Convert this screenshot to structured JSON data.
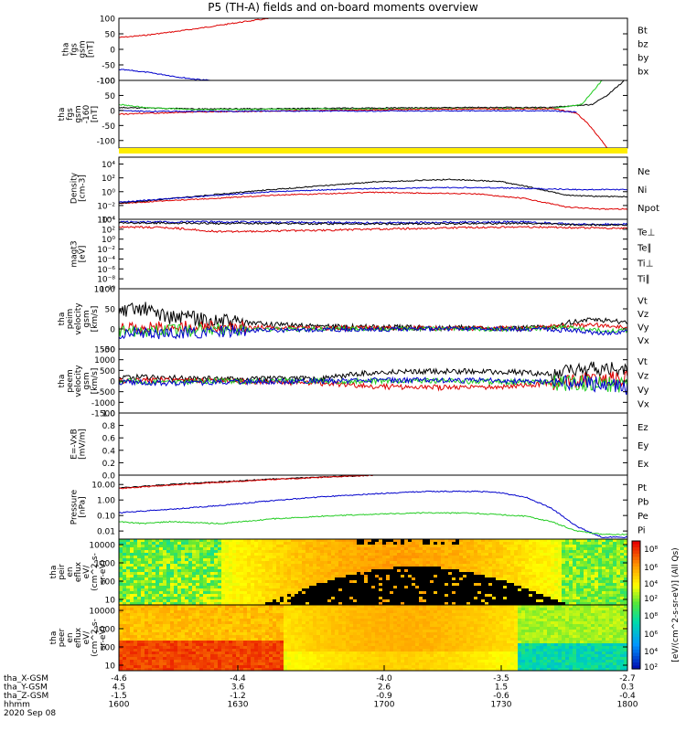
{
  "title": "P5 (TH-A) fields and on-board moments overview",
  "date_label": "2020 Sep 08",
  "colors": {
    "black": "#000000",
    "red": "#dd0000",
    "green": "#22cc22",
    "blue": "#0000cc",
    "yellow": "#ffee00"
  },
  "chart_data": [
    {
      "type": "line",
      "id": "fgs",
      "ylabel": [
        "tha",
        "fgs",
        "gsm",
        "[nT]"
      ],
      "ylim": [
        -100,
        100
      ],
      "yticks": [
        "100",
        "50",
        "0",
        "-50",
        "-100"
      ],
      "ytick_values": [
        100,
        50,
        0,
        -50,
        -100
      ],
      "legend": [
        {
          "label": "Bt",
          "color": "#000000"
        },
        {
          "label": "bz",
          "color": "#dd0000"
        },
        {
          "label": "by",
          "color": "#22cc22"
        },
        {
          "label": "bx",
          "color": "#0000cc"
        }
      ],
      "series": [
        {
          "name": "bz",
          "color": "#dd0000",
          "x": [
            0,
            0.05,
            0.1,
            0.15,
            0.2,
            0.25,
            0.3
          ],
          "y": [
            38,
            45,
            55,
            66,
            78,
            90,
            100
          ]
        },
        {
          "name": "bx",
          "color": "#0000cc",
          "x": [
            0,
            0.03,
            0.06,
            0.09,
            0.12,
            0.15,
            0.18
          ],
          "y": [
            -65,
            -69,
            -75,
            -82,
            -90,
            -96,
            -100
          ]
        }
      ]
    },
    {
      "type": "line",
      "id": "fgs2",
      "ylabel": [
        "tha",
        "fgs",
        "gsm",
        "-160",
        "[nT]"
      ],
      "ylim": [
        -125,
        100
      ],
      "yticks": [
        "100",
        "50",
        "0",
        "-50",
        "-100"
      ],
      "ytick_values": [
        100,
        50,
        0,
        -50,
        -100
      ],
      "legend": [],
      "series": [
        {
          "name": "black",
          "color": "#000000",
          "x": [
            0,
            0.05,
            0.15,
            0.3,
            0.5,
            0.7,
            0.85,
            0.93,
            0.96,
            0.98,
            0.995
          ],
          "y": [
            10,
            8,
            5,
            6,
            8,
            10,
            10,
            20,
            50,
            80,
            100
          ]
        },
        {
          "name": "green",
          "color": "#22cc22",
          "x": [
            0,
            0.05,
            0.15,
            0.3,
            0.5,
            0.7,
            0.85,
            0.91,
            0.93,
            0.95
          ],
          "y": [
            20,
            10,
            3,
            4,
            5,
            6,
            6,
            20,
            60,
            100
          ]
        },
        {
          "name": "red",
          "color": "#dd0000",
          "x": [
            0,
            0.05,
            0.15,
            0.3,
            0.5,
            0.7,
            0.86,
            0.9,
            0.92,
            0.94,
            0.96
          ],
          "y": [
            -12,
            -10,
            -5,
            -2,
            2,
            5,
            5,
            -10,
            -40,
            -80,
            -125
          ]
        },
        {
          "name": "blue",
          "color": "#0000cc",
          "x": [
            0,
            0.05,
            0.15,
            0.3,
            0.5,
            0.7,
            0.85,
            0.9
          ],
          "y": [
            0,
            -3,
            -3,
            -2,
            -2,
            -1,
            -1,
            -5
          ]
        }
      ]
    },
    {
      "type": "line",
      "id": "density",
      "yscale": "log",
      "ylabel": [
        "Density",
        "[cm-3]"
      ],
      "ylim": [
        0.0001,
        100000
      ],
      "yticks": [
        "10⁴",
        "10²",
        "10⁰",
        "10⁻²",
        "10⁻⁴"
      ],
      "ytick_values": [
        10000,
        100,
        1,
        0.01,
        0.0001
      ],
      "legend": [
        {
          "label": "Ne",
          "color": "#dd0000"
        },
        {
          "label": "Ni",
          "color": "#000000"
        },
        {
          "label": "Npot",
          "color": "#0000cc"
        }
      ],
      "series": [
        {
          "name": "Ne",
          "color": "#dd0000",
          "x": [
            0,
            0.1,
            0.3,
            0.5,
            0.7,
            0.8,
            0.88,
            0.95,
            1
          ],
          "y": [
            0.02,
            0.05,
            0.3,
            0.8,
            0.5,
            0.1,
            0.006,
            0.003,
            0.003
          ]
        },
        {
          "name": "Ni",
          "color": "#000000",
          "x": [
            0,
            0.1,
            0.3,
            0.5,
            0.65,
            0.75,
            0.82,
            0.88,
            0.95,
            1
          ],
          "y": [
            0.02,
            0.1,
            2,
            25,
            60,
            30,
            3,
            0.3,
            0.2,
            0.2
          ]
        },
        {
          "name": "Npot",
          "color": "#0000cc",
          "x": [
            0,
            0.1,
            0.3,
            0.5,
            0.7,
            0.8,
            0.9,
            1
          ],
          "y": [
            0.03,
            0.1,
            1,
            3,
            4,
            3,
            2,
            2
          ]
        }
      ]
    },
    {
      "type": "line",
      "id": "temperature",
      "yscale": "log",
      "ylabel": [
        "magt3",
        "[eV]"
      ],
      "ylim": [
        1e-10,
        10000
      ],
      "yticks": [
        "10⁴",
        "10²",
        "10⁰",
        "10⁻²",
        "10⁻⁴",
        "10⁻⁶",
        "10⁻⁸",
        "10⁻¹⁰"
      ],
      "ytick_values": [
        10000,
        100,
        1,
        0.01,
        0.0001,
        1e-06,
        1e-08,
        1e-10
      ],
      "legend": [
        {
          "label": "Te⊥",
          "color": "#dd0000"
        },
        {
          "label": "Te∥",
          "color": "#000000"
        },
        {
          "label": "Ti⊥",
          "color": "#880088"
        },
        {
          "label": "Ti∥",
          "color": "#22cc22"
        }
      ],
      "series": [
        {
          "name": "Ti",
          "color": "#0000cc",
          "x": [
            0,
            0.2,
            0.5,
            0.8,
            0.9,
            1
          ],
          "y": [
            3000,
            3000,
            2000,
            3000,
            1000,
            1000
          ]
        },
        {
          "name": "Te",
          "color": "#dd0000",
          "x": [
            0,
            0.1,
            0.2,
            0.35,
            0.5,
            0.65,
            0.8,
            0.9,
            1
          ],
          "y": [
            300,
            200,
            30,
            50,
            100,
            200,
            300,
            200,
            150
          ]
        },
        {
          "name": "Te∥",
          "color": "#000000",
          "x": [
            0,
            0.2,
            0.5,
            0.8,
            0.9,
            1
          ],
          "y": [
            2000,
            1500,
            1200,
            1500,
            800,
            800
          ]
        }
      ]
    },
    {
      "type": "line",
      "id": "peim",
      "ylabel": [
        "tha",
        "peim",
        "velocity",
        "gsm",
        "[km/s]"
      ],
      "ylim": [
        -50,
        100
      ],
      "yticks": [
        "100",
        "50",
        "0",
        "-50"
      ],
      "ytick_values": [
        100,
        50,
        0,
        -50
      ],
      "legend": [
        {
          "label": "Vt",
          "color": "#000000"
        },
        {
          "label": "Vz",
          "color": "#dd0000"
        },
        {
          "label": "Vy",
          "color": "#22cc22"
        },
        {
          "label": "Vx",
          "color": "#0000cc"
        }
      ],
      "series": [
        {
          "name": "Vt",
          "color": "#000000",
          "x": [
            0,
            0.05,
            0.1,
            0.15,
            0.2,
            0.3,
            0.45,
            0.6,
            0.8,
            0.85,
            0.88,
            0.9,
            0.95,
            1
          ],
          "y": [
            40,
            50,
            30,
            25,
            20,
            10,
            5,
            3,
            2,
            5,
            15,
            20,
            22,
            18
          ]
        },
        {
          "name": "Vz",
          "color": "#dd0000",
          "x": [
            0,
            0.1,
            0.2,
            0.4,
            0.6,
            0.8,
            0.88,
            0.95,
            1
          ],
          "y": [
            0,
            5,
            5,
            2,
            2,
            1,
            8,
            10,
            5
          ]
        },
        {
          "name": "Vy",
          "color": "#22cc22",
          "x": [
            0,
            0.1,
            0.2,
            0.4,
            0.6,
            0.8,
            0.88,
            0.95,
            1
          ],
          "y": [
            -5,
            -5,
            -2,
            0,
            0,
            0,
            5,
            -5,
            -3
          ]
        },
        {
          "name": "Vx",
          "color": "#0000cc",
          "x": [
            0,
            0.1,
            0.2,
            0.4,
            0.6,
            0.8,
            0.88,
            0.95,
            1
          ],
          "y": [
            -10,
            -10,
            -5,
            -2,
            0,
            0,
            -3,
            -10,
            -5
          ]
        }
      ]
    },
    {
      "type": "line",
      "id": "peem",
      "ylabel": [
        "tha",
        "peem",
        "velocity",
        "gsm",
        "[km/s]"
      ],
      "ylim": [
        -1500,
        1500
      ],
      "yticks": [
        "1500",
        "1000",
        "500",
        "0",
        "-500",
        "-1000",
        "-1500"
      ],
      "ytick_values": [
        1500,
        1000,
        500,
        0,
        -500,
        -1000,
        -1500
      ],
      "legend": [
        {
          "label": "Vt",
          "color": "#000000"
        },
        {
          "label": "Vz",
          "color": "#dd0000"
        },
        {
          "label": "Vy",
          "color": "#22cc22"
        },
        {
          "label": "Vx",
          "color": "#0000cc"
        }
      ],
      "series": [
        {
          "name": "Vt",
          "color": "#000000",
          "x": [
            0,
            0.1,
            0.2,
            0.4,
            0.45,
            0.5,
            0.6,
            0.7,
            0.8,
            0.85,
            0.9,
            1
          ],
          "y": [
            200,
            150,
            100,
            100,
            300,
            400,
            450,
            450,
            400,
            300,
            500,
            600
          ]
        },
        {
          "name": "Vz",
          "color": "#dd0000",
          "x": [
            0,
            0.1,
            0.2,
            0.4,
            0.5,
            0.6,
            0.7,
            0.8,
            0.85,
            0.9,
            1
          ],
          "y": [
            0,
            50,
            0,
            -100,
            -250,
            -300,
            -300,
            -200,
            -100,
            0,
            100
          ]
        },
        {
          "name": "Vy",
          "color": "#22cc22",
          "x": [
            0,
            0.1,
            0.2,
            0.4,
            0.6,
            0.8,
            0.9,
            1
          ],
          "y": [
            0,
            -50,
            0,
            0,
            0,
            -50,
            -100,
            -200
          ]
        },
        {
          "name": "Vx",
          "color": "#0000cc",
          "x": [
            0,
            0.1,
            0.2,
            0.4,
            0.6,
            0.8,
            0.9,
            1
          ],
          "y": [
            -50,
            -100,
            -50,
            0,
            50,
            0,
            -100,
            -300
          ]
        }
      ]
    },
    {
      "type": "line",
      "id": "efield",
      "ylabel": [
        "E=-VxB",
        "[mV/m]"
      ],
      "ylim": [
        0,
        1
      ],
      "yticks": [
        "1.0",
        "0.8",
        "0.6",
        "0.4",
        "0.2",
        "0.0"
      ],
      "ytick_values": [
        1,
        0.8,
        0.6,
        0.4,
        0.2,
        0
      ],
      "legend": [
        {
          "label": "Ez",
          "color": "#dd0000"
        },
        {
          "label": "Ey",
          "color": "#22cc22"
        },
        {
          "label": "Ex",
          "color": "#0000cc"
        }
      ],
      "series": []
    },
    {
      "type": "line",
      "id": "pressure",
      "yscale": "log",
      "ylabel": [
        "Pressure",
        "[nPa]"
      ],
      "ylim": [
        0.003,
        40
      ],
      "yticks": [
        "10.00",
        "1.00",
        "0.10",
        "0.01"
      ],
      "ytick_values": [
        10,
        1,
        0.1,
        0.01
      ],
      "legend": [
        {
          "label": "Pt",
          "color": "#000000"
        },
        {
          "label": "Pb",
          "color": "#dd0000"
        },
        {
          "label": "Pe",
          "color": "#22cc22"
        },
        {
          "label": "Pi",
          "color": "#0000cc"
        }
      ],
      "series": [
        {
          "name": "Pt",
          "color": "#000000",
          "x": [
            0,
            0.1,
            0.2,
            0.3,
            0.4,
            0.5
          ],
          "y": [
            6,
            10,
            15,
            22,
            30,
            40
          ]
        },
        {
          "name": "Pb",
          "color": "#dd0000",
          "x": [
            0,
            0.1,
            0.2,
            0.3,
            0.4,
            0.5
          ],
          "y": [
            5.5,
            9,
            14,
            21,
            29,
            40
          ]
        },
        {
          "name": "Pi",
          "color": "#0000cc",
          "x": [
            0,
            0.1,
            0.2,
            0.3,
            0.4,
            0.5,
            0.6,
            0.7,
            0.75,
            0.8,
            0.85,
            0.9,
            0.95,
            1
          ],
          "y": [
            0.15,
            0.25,
            0.45,
            0.9,
            1.6,
            2.5,
            3.5,
            3.6,
            3,
            1.5,
            0.3,
            0.02,
            0.004,
            0.004
          ]
        },
        {
          "name": "Pe",
          "color": "#22cc22",
          "x": [
            0,
            0.05,
            0.1,
            0.2,
            0.3,
            0.4,
            0.5,
            0.6,
            0.7,
            0.8,
            0.85,
            0.9,
            0.95,
            1
          ],
          "y": [
            0.04,
            0.03,
            0.04,
            0.03,
            0.06,
            0.09,
            0.12,
            0.15,
            0.14,
            0.09,
            0.04,
            0.01,
            0.006,
            0.006
          ]
        }
      ]
    },
    {
      "type": "heatmap",
      "id": "peir",
      "ylabel": [
        "tha",
        "peir",
        "en",
        "eflux",
        "eV/",
        "(cm^2-s-",
        "sr-eV)"
      ],
      "yscale": "log",
      "ylim": [
        5,
        20000
      ],
      "yticks": [
        "10000",
        "1000",
        "100",
        "10"
      ],
      "ytick_values": [
        10000,
        1000,
        100,
        10
      ]
    },
    {
      "type": "heatmap",
      "id": "peer",
      "ylabel": [
        "tha",
        "peer",
        "en",
        "eflux",
        "eV/",
        "(cm^2-s-",
        "sr-eV)"
      ],
      "yscale": "log",
      "ylim": [
        5,
        20000
      ],
      "yticks": [
        "10000",
        "1000",
        "100",
        "10"
      ],
      "ytick_values": [
        10000,
        1000,
        100,
        10
      ]
    }
  ],
  "colorbar": {
    "label": "[eV/(cm^2-s-sr-eV)] (All Qs)",
    "ticks": [
      "10⁸",
      "10⁶",
      "10⁴",
      "10²",
      "10⁸",
      "10⁶",
      "10⁴",
      "10²"
    ]
  },
  "xaxis": {
    "rows": [
      {
        "label": "tha_X-GSM",
        "values": [
          "-4.6",
          "-4.4",
          "-4.0",
          "-3.5",
          "-2.7"
        ]
      },
      {
        "label": "tha_Y-GSM",
        "values": [
          "4.5",
          "3.6",
          "2.6",
          "1.5",
          "0.3"
        ]
      },
      {
        "label": "tha_Z-GSM",
        "values": [
          "-1.5",
          "-1.2",
          "-0.9",
          "-0.6",
          "-0.4"
        ]
      },
      {
        "label": "hhmm",
        "values": [
          "1600",
          "1630",
          "1700",
          "1730",
          "1800"
        ]
      }
    ]
  }
}
